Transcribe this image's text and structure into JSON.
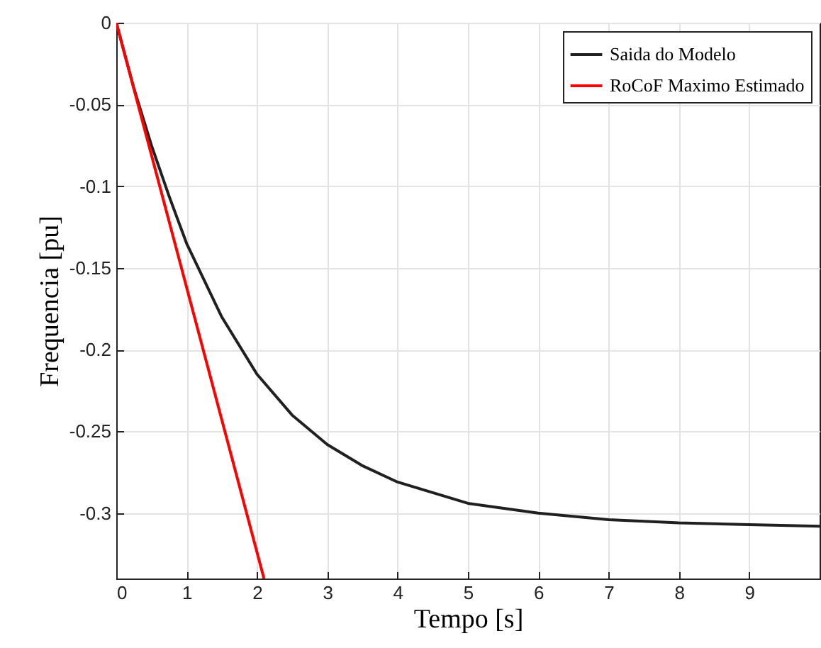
{
  "chart_data": {
    "type": "line",
    "xlabel": "Tempo [s]",
    "ylabel": "Frequencia [pu]",
    "xlim": [
      0,
      10
    ],
    "ylim": [
      -0.34,
      0
    ],
    "xticks": [
      0,
      1,
      2,
      3,
      4,
      5,
      6,
      7,
      8,
      9
    ],
    "yticks": [
      0,
      -0.05,
      -0.1,
      -0.15,
      -0.2,
      -0.25,
      -0.3
    ],
    "grid": true,
    "legend": "top right",
    "series": [
      {
        "name": "Saida do Modelo",
        "color": "#202020",
        "x": [
          0,
          0.25,
          0.5,
          0.75,
          1,
          1.5,
          2,
          2.5,
          3,
          3.5,
          4,
          5,
          6,
          7,
          8,
          9,
          10
        ],
        "values": [
          0,
          -0.04,
          -0.075,
          -0.106,
          -0.135,
          -0.18,
          -0.215,
          -0.24,
          -0.258,
          -0.271,
          -0.281,
          -0.294,
          -0.3,
          -0.304,
          -0.306,
          -0.307,
          -0.308
        ]
      },
      {
        "name": "RoCoF Maximo Estimado",
        "color": "#ff0000",
        "x": [
          0,
          2.1
        ],
        "values": [
          0,
          -0.34
        ]
      }
    ]
  }
}
